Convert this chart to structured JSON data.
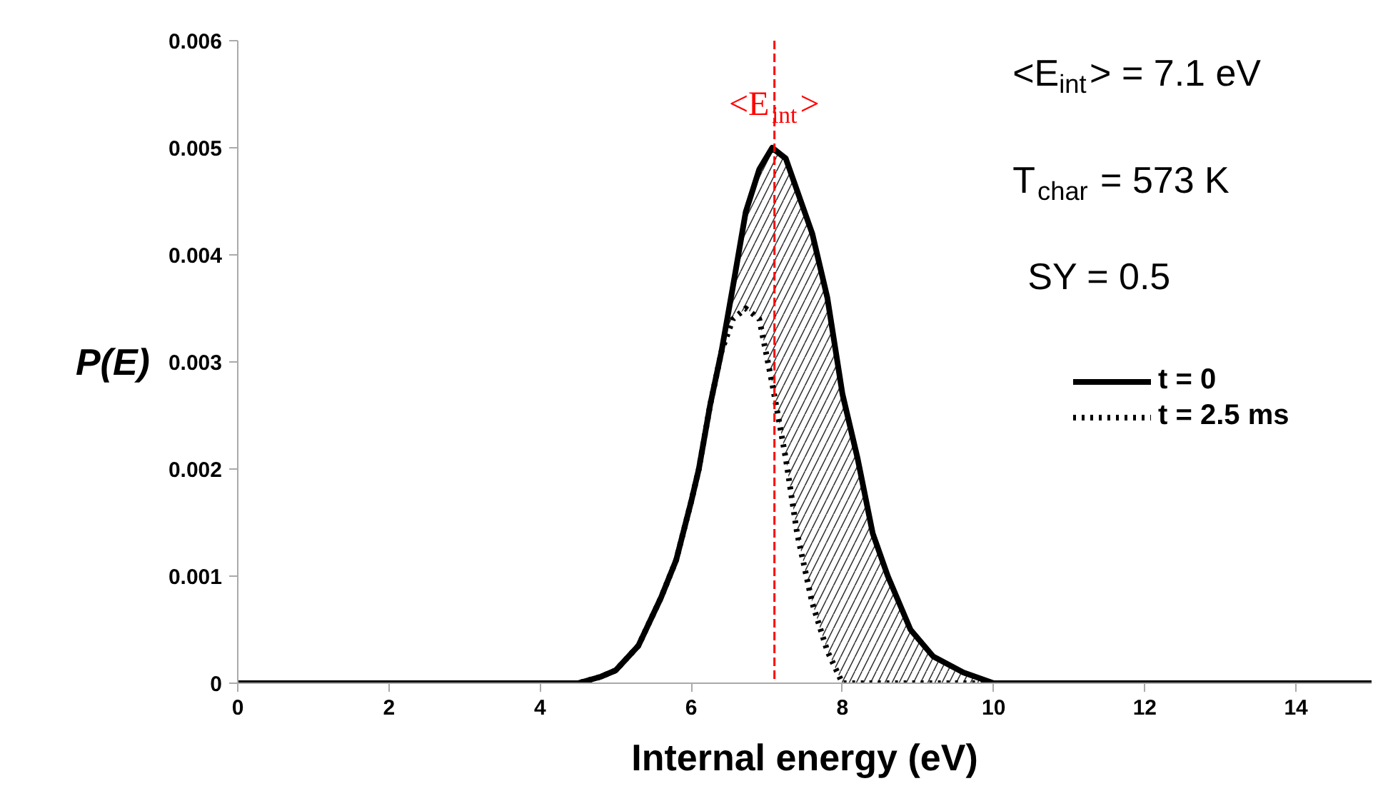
{
  "chart_data": {
    "type": "line",
    "xlabel": "Internal energy (eV)",
    "ylabel": "P(E)",
    "x": [
      0,
      2,
      4,
      4.5,
      4.8,
      5.0,
      5.3,
      5.6,
      5.8,
      6.0,
      6.1,
      6.25,
      6.4,
      6.55,
      6.72,
      6.9,
      7.07,
      7.25,
      7.4,
      7.6,
      7.8,
      8.0,
      8.2,
      8.4,
      8.6,
      8.9,
      9.2,
      9.6,
      10,
      11,
      12,
      13,
      14,
      15
    ],
    "series": [
      {
        "name": "t = 0",
        "color": "#000000",
        "line_style": "solid",
        "values": [
          0,
          0,
          0,
          0,
          6e-05,
          0.00012,
          0.00035,
          0.0008,
          0.00115,
          0.0017,
          0.002,
          0.0026,
          0.0031,
          0.0037,
          0.0044,
          0.0048,
          0.005,
          0.0049,
          0.0046,
          0.0042,
          0.0036,
          0.0027,
          0.0021,
          0.0014,
          0.001,
          0.0005,
          0.00025,
          0.0001,
          0,
          0,
          0,
          0,
          0,
          0
        ],
        "lower": [
          0,
          0,
          0,
          0,
          6e-05,
          0.00012,
          0.00035,
          0.0008,
          0.00115,
          0.0017,
          0.002,
          0.0026,
          0.0031,
          0.0034,
          0.0035,
          0.0034,
          0.0028,
          0.0021,
          0.0014,
          0.00075,
          0.0003,
          0,
          0,
          0,
          0,
          0,
          0,
          0,
          0,
          0,
          0,
          0,
          0,
          0
        ],
        "upper": [
          0,
          0,
          0,
          0,
          6e-05,
          0.00012,
          0.00035,
          0.0008,
          0.00115,
          0.0017,
          0.002,
          0.0026,
          0.0031,
          0.0037,
          0.0044,
          0.0048,
          0.005,
          0.0049,
          0.0046,
          0.0042,
          0.0036,
          0.0027,
          0.0021,
          0.0014,
          0.001,
          0.0005,
          0.00025,
          0.0001,
          0,
          0,
          0,
          0,
          0,
          0
        ]
      },
      {
        "name": "t = 2.5 ms",
        "color": "#000000",
        "line_style": "dotted",
        "values": [
          0,
          0,
          0,
          0,
          6e-05,
          0.00012,
          0.00035,
          0.0008,
          0.00115,
          0.0017,
          0.002,
          0.0026,
          0.0031,
          0.0034,
          0.0035,
          0.0034,
          0.0028,
          0.0021,
          0.0014,
          0.00075,
          0.0003,
          0,
          0,
          0,
          0,
          0,
          0,
          0,
          0,
          0,
          0,
          0,
          0,
          0
        ]
      }
    ],
    "xlim": [
      0,
      15
    ],
    "xticks": [
      0,
      2,
      4,
      6,
      8,
      10,
      12,
      14
    ],
    "ylim": [
      0,
      0.006
    ],
    "yticks": [
      0,
      0.001,
      0.002,
      0.003,
      0.004,
      0.005,
      0.006
    ],
    "ref_lines": [
      {
        "axis": "x",
        "value": 7.1,
        "label": "<E$_{int}$>",
        "color": "#ff0000",
        "line_style": "dashed"
      }
    ],
    "annotations": [
      "<E$_{int}$> = 7.1 eV",
      "T$_{char}$ = 573 K",
      "SY = 0.5"
    ],
    "legend": "right",
    "grid": false,
    "marker": "none"
  }
}
